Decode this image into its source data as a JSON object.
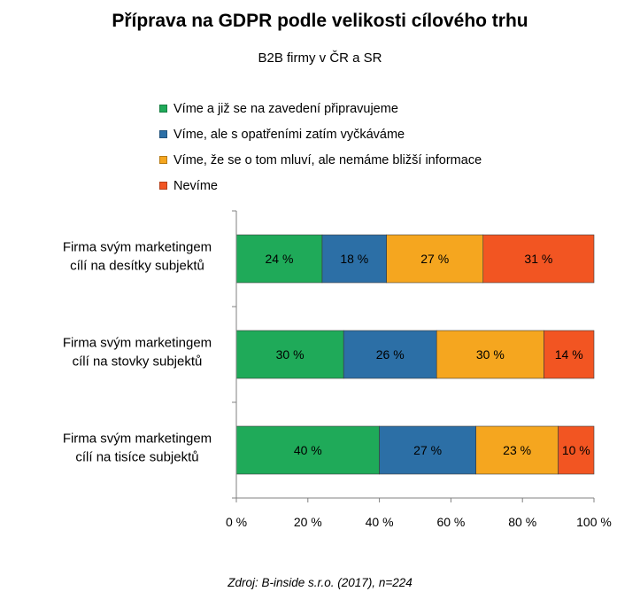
{
  "chart_data": {
    "type": "bar",
    "orientation": "horizontal",
    "stacked": true,
    "title": "Příprava na GDPR podle velikosti cílového trhu",
    "subtitle": "B2B firmy v ČR a SR",
    "categories": [
      [
        "Firma svým marketingem",
        "cílí na desítky subjektů"
      ],
      [
        "Firma svým marketingem",
        "cílí na stovky subjektů"
      ],
      [
        "Firma svým marketingem",
        "cílí na tisíce subjektů"
      ]
    ],
    "series": [
      {
        "name": "Víme a již se na zavedení připravujeme",
        "color": "#1faa59",
        "values": [
          24,
          30,
          40
        ],
        "labels": [
          "24 %",
          "30 %",
          "40 %"
        ]
      },
      {
        "name": "Víme, ale s opatřeními zatím vyčkáváme",
        "color": "#2c6fa6",
        "values": [
          18,
          26,
          27
        ],
        "labels": [
          "18 %",
          "26 %",
          "27 %"
        ]
      },
      {
        "name": "Víme, že se o tom mluví, ale nemáme bližší informace",
        "color": "#f5a61f",
        "values": [
          27,
          30,
          23
        ],
        "labels": [
          "27 %",
          "30 %",
          "23 %"
        ]
      },
      {
        "name": "Nevíme",
        "color": "#f25522",
        "values": [
          31,
          14,
          10
        ],
        "labels": [
          "31 %",
          "14 %",
          "10 %"
        ]
      }
    ],
    "xlim": [
      0,
      100
    ],
    "xticks": [
      0,
      20,
      40,
      60,
      80,
      100
    ],
    "xtick_labels": [
      "0 %",
      "20 %",
      "40 %",
      "60 %",
      "80 %",
      "100 %"
    ],
    "legend_position": "top",
    "grid": false
  },
  "source": "Zdroj: B-inside s.r.o. (2017), n=224"
}
